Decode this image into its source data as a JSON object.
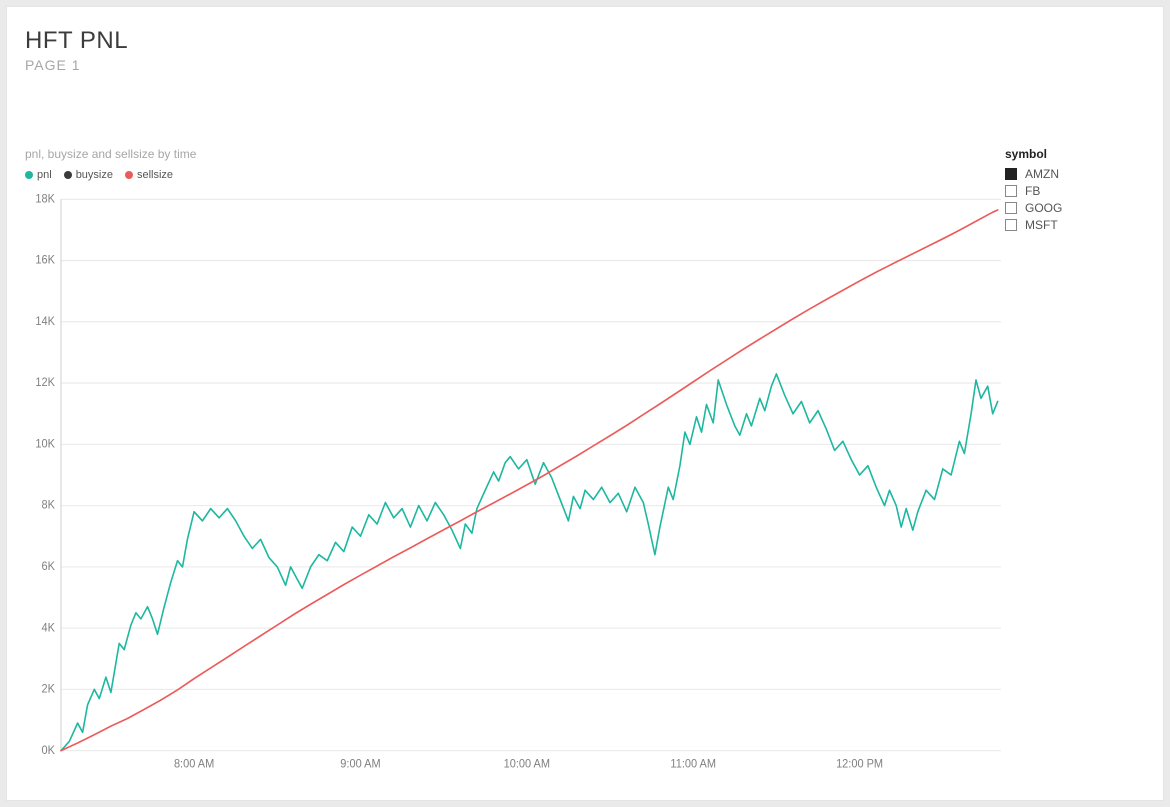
{
  "header": {
    "title": "HFT PNL",
    "subtitle": "PAGE 1"
  },
  "chart": {
    "type": "line",
    "title": "pnl, buysize and sellsize by time",
    "background_color": "#ffffff",
    "grid_color": "#e9e9e9",
    "axis_color": "#cfcfcf",
    "axis_label_color": "#808080",
    "axis_fontsize": 11,
    "title_fontsize": 12,
    "title_color": "#a6a6a6",
    "line_width": 1.6,
    "y": {
      "min": 0,
      "max": 18000,
      "tick_step": 2000,
      "ticks": [
        0,
        2000,
        4000,
        6000,
        8000,
        10000,
        12000,
        14000,
        16000,
        18000
      ],
      "tick_labels": [
        "0K",
        "2K",
        "4K",
        "6K",
        "8K",
        "10K",
        "12K",
        "14K",
        "16K",
        "18K"
      ],
      "grid": true
    },
    "x": {
      "min": 7.2,
      "max": 12.85,
      "ticks": [
        8,
        9,
        10,
        11,
        12
      ],
      "tick_labels": [
        "8:00 AM",
        "9:00 AM",
        "10:00 AM",
        "11:00 AM",
        "12:00 PM"
      ],
      "grid": false
    },
    "legend": {
      "items": [
        {
          "label": "pnl",
          "color": "#1eb8a0"
        },
        {
          "label": "buysize",
          "color": "#3b3b3b"
        },
        {
          "label": "sellsize",
          "color": "#ec5b5b"
        }
      ]
    },
    "series": [
      {
        "name": "pnl",
        "color": "#1eb8a0",
        "points": [
          [
            7.2,
            0
          ],
          [
            7.25,
            300
          ],
          [
            7.3,
            900
          ],
          [
            7.33,
            600
          ],
          [
            7.36,
            1500
          ],
          [
            7.4,
            2000
          ],
          [
            7.43,
            1700
          ],
          [
            7.47,
            2400
          ],
          [
            7.5,
            1900
          ],
          [
            7.55,
            3500
          ],
          [
            7.58,
            3300
          ],
          [
            7.62,
            4100
          ],
          [
            7.65,
            4500
          ],
          [
            7.68,
            4300
          ],
          [
            7.72,
            4700
          ],
          [
            7.75,
            4300
          ],
          [
            7.78,
            3800
          ],
          [
            7.82,
            4700
          ],
          [
            7.86,
            5500
          ],
          [
            7.9,
            6200
          ],
          [
            7.93,
            6000
          ],
          [
            7.96,
            6900
          ],
          [
            8.0,
            7800
          ],
          [
            8.05,
            7500
          ],
          [
            8.1,
            7900
          ],
          [
            8.15,
            7600
          ],
          [
            8.2,
            7900
          ],
          [
            8.25,
            7500
          ],
          [
            8.3,
            7000
          ],
          [
            8.35,
            6600
          ],
          [
            8.4,
            6900
          ],
          [
            8.45,
            6300
          ],
          [
            8.5,
            6000
          ],
          [
            8.55,
            5400
          ],
          [
            8.58,
            6000
          ],
          [
            8.62,
            5600
          ],
          [
            8.65,
            5300
          ],
          [
            8.7,
            6000
          ],
          [
            8.75,
            6400
          ],
          [
            8.8,
            6200
          ],
          [
            8.85,
            6800
          ],
          [
            8.9,
            6500
          ],
          [
            8.95,
            7300
          ],
          [
            9.0,
            7000
          ],
          [
            9.05,
            7700
          ],
          [
            9.1,
            7400
          ],
          [
            9.15,
            8100
          ],
          [
            9.2,
            7600
          ],
          [
            9.25,
            7900
          ],
          [
            9.3,
            7300
          ],
          [
            9.35,
            8000
          ],
          [
            9.4,
            7500
          ],
          [
            9.45,
            8100
          ],
          [
            9.5,
            7700
          ],
          [
            9.55,
            7200
          ],
          [
            9.6,
            6600
          ],
          [
            9.63,
            7400
          ],
          [
            9.67,
            7100
          ],
          [
            9.7,
            7900
          ],
          [
            9.75,
            8500
          ],
          [
            9.8,
            9100
          ],
          [
            9.83,
            8800
          ],
          [
            9.87,
            9400
          ],
          [
            9.9,
            9600
          ],
          [
            9.95,
            9200
          ],
          [
            10.0,
            9500
          ],
          [
            10.05,
            8700
          ],
          [
            10.1,
            9400
          ],
          [
            10.15,
            8900
          ],
          [
            10.2,
            8200
          ],
          [
            10.25,
            7500
          ],
          [
            10.28,
            8300
          ],
          [
            10.32,
            7900
          ],
          [
            10.35,
            8500
          ],
          [
            10.4,
            8200
          ],
          [
            10.45,
            8600
          ],
          [
            10.5,
            8100
          ],
          [
            10.55,
            8400
          ],
          [
            10.6,
            7800
          ],
          [
            10.65,
            8600
          ],
          [
            10.7,
            8100
          ],
          [
            10.73,
            7400
          ],
          [
            10.77,
            6400
          ],
          [
            10.8,
            7300
          ],
          [
            10.85,
            8600
          ],
          [
            10.88,
            8200
          ],
          [
            10.92,
            9300
          ],
          [
            10.95,
            10400
          ],
          [
            10.98,
            10000
          ],
          [
            11.02,
            10900
          ],
          [
            11.05,
            10400
          ],
          [
            11.08,
            11300
          ],
          [
            11.12,
            10700
          ],
          [
            11.15,
            12100
          ],
          [
            11.2,
            11300
          ],
          [
            11.25,
            10600
          ],
          [
            11.28,
            10300
          ],
          [
            11.32,
            11000
          ],
          [
            11.35,
            10600
          ],
          [
            11.4,
            11500
          ],
          [
            11.43,
            11100
          ],
          [
            11.47,
            11900
          ],
          [
            11.5,
            12300
          ],
          [
            11.55,
            11600
          ],
          [
            11.6,
            11000
          ],
          [
            11.65,
            11400
          ],
          [
            11.7,
            10700
          ],
          [
            11.75,
            11100
          ],
          [
            11.8,
            10500
          ],
          [
            11.85,
            9800
          ],
          [
            11.9,
            10100
          ],
          [
            11.95,
            9500
          ],
          [
            12.0,
            9000
          ],
          [
            12.05,
            9300
          ],
          [
            12.1,
            8600
          ],
          [
            12.15,
            8000
          ],
          [
            12.18,
            8500
          ],
          [
            12.22,
            8000
          ],
          [
            12.25,
            7300
          ],
          [
            12.28,
            7900
          ],
          [
            12.32,
            7200
          ],
          [
            12.35,
            7800
          ],
          [
            12.4,
            8500
          ],
          [
            12.45,
            8200
          ],
          [
            12.5,
            9200
          ],
          [
            12.55,
            9000
          ],
          [
            12.6,
            10100
          ],
          [
            12.63,
            9700
          ],
          [
            12.67,
            11000
          ],
          [
            12.7,
            12100
          ],
          [
            12.73,
            11500
          ],
          [
            12.77,
            11900
          ],
          [
            12.8,
            11000
          ],
          [
            12.83,
            11400
          ]
        ]
      },
      {
        "name": "sellsize",
        "color": "#ec5b5b",
        "points": [
          [
            7.2,
            0
          ],
          [
            7.3,
            250
          ],
          [
            7.4,
            520
          ],
          [
            7.5,
            800
          ],
          [
            7.6,
            1050
          ],
          [
            7.7,
            1350
          ],
          [
            7.8,
            1650
          ],
          [
            7.9,
            1980
          ],
          [
            8.0,
            2350
          ],
          [
            8.1,
            2700
          ],
          [
            8.2,
            3050
          ],
          [
            8.3,
            3400
          ],
          [
            8.4,
            3750
          ],
          [
            8.5,
            4100
          ],
          [
            8.6,
            4450
          ],
          [
            8.7,
            4780
          ],
          [
            8.8,
            5100
          ],
          [
            8.9,
            5420
          ],
          [
            9.0,
            5730
          ],
          [
            9.1,
            6030
          ],
          [
            9.2,
            6330
          ],
          [
            9.3,
            6620
          ],
          [
            9.4,
            6920
          ],
          [
            9.5,
            7210
          ],
          [
            9.6,
            7500
          ],
          [
            9.7,
            7800
          ],
          [
            9.8,
            8090
          ],
          [
            9.9,
            8380
          ],
          [
            10.0,
            8680
          ],
          [
            10.1,
            8980
          ],
          [
            10.2,
            9300
          ],
          [
            10.3,
            9620
          ],
          [
            10.4,
            9950
          ],
          [
            10.5,
            10280
          ],
          [
            10.6,
            10620
          ],
          [
            10.7,
            10970
          ],
          [
            10.8,
            11320
          ],
          [
            10.9,
            11680
          ],
          [
            11.0,
            12040
          ],
          [
            11.1,
            12400
          ],
          [
            11.2,
            12750
          ],
          [
            11.3,
            13100
          ],
          [
            11.4,
            13440
          ],
          [
            11.5,
            13770
          ],
          [
            11.6,
            14100
          ],
          [
            11.7,
            14420
          ],
          [
            11.8,
            14730
          ],
          [
            11.9,
            15030
          ],
          [
            12.0,
            15330
          ],
          [
            12.1,
            15620
          ],
          [
            12.2,
            15900
          ],
          [
            12.3,
            16170
          ],
          [
            12.4,
            16440
          ],
          [
            12.5,
            16710
          ],
          [
            12.6,
            16990
          ],
          [
            12.7,
            17280
          ],
          [
            12.8,
            17580
          ],
          [
            12.83,
            17650
          ]
        ]
      }
    ]
  },
  "slicer": {
    "title": "symbol",
    "items": [
      {
        "label": "AMZN",
        "checked": true
      },
      {
        "label": "FB",
        "checked": false
      },
      {
        "label": "GOOG",
        "checked": false
      },
      {
        "label": "MSFT",
        "checked": false
      }
    ]
  }
}
